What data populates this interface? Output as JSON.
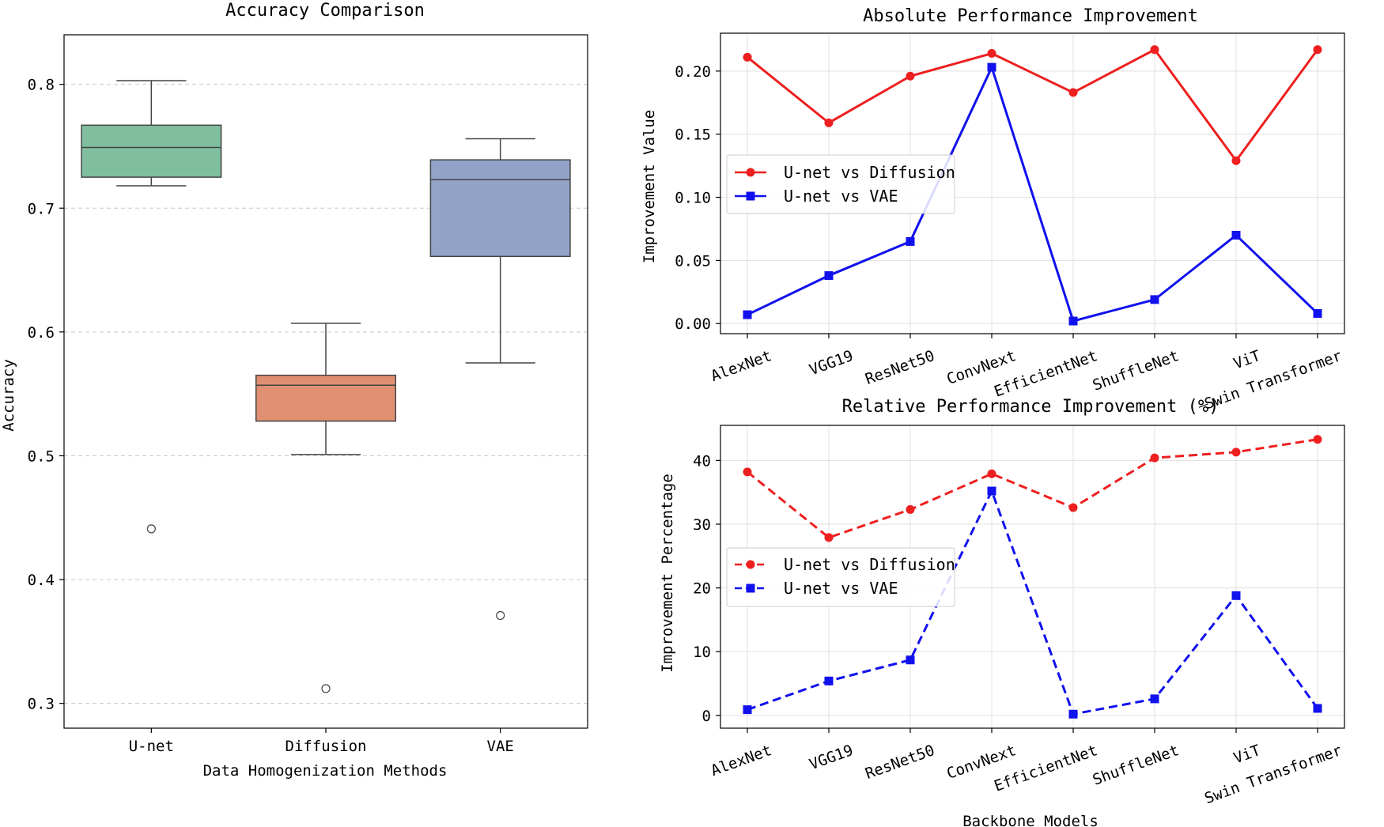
{
  "chart_data": [
    {
      "type": "box",
      "title": "Accuracy Comparison",
      "xlabel": "Data Homogenization Methods",
      "ylabel": "Accuracy",
      "ylim": [
        0.28,
        0.84
      ],
      "yticks": [
        0.3,
        0.4,
        0.5,
        0.6,
        0.7,
        0.8
      ],
      "ytick_labels": [
        "0.3",
        "0.4",
        "0.5",
        "0.6",
        "0.7",
        "0.8"
      ],
      "grid": "y-dashed",
      "boxes": [
        {
          "label": "U-net",
          "whisker_low": 0.718,
          "q1": 0.725,
          "median": 0.749,
          "q3": 0.767,
          "whisker_high": 0.803,
          "outliers": [
            0.441
          ],
          "color": "#7fbf9f"
        },
        {
          "label": "Diffusion",
          "whisker_low": 0.501,
          "q1": 0.528,
          "median": 0.557,
          "q3": 0.565,
          "whisker_high": 0.607,
          "outliers": [
            0.312
          ],
          "color": "#e09070"
        },
        {
          "label": "VAE",
          "whisker_low": 0.575,
          "q1": 0.661,
          "median": 0.723,
          "q3": 0.739,
          "whisker_high": 0.756,
          "outliers": [
            0.371
          ],
          "color": "#93a3c7"
        }
      ]
    },
    {
      "type": "line",
      "title": "Absolute Performance Improvement",
      "xlabel": "",
      "ylabel": "Improvement Value",
      "categories": [
        "AlexNet",
        "VGG19",
        "ResNet50",
        "ConvNext",
        "EfficientNet",
        "ShuffleNet",
        "ViT",
        "Swin Transformer"
      ],
      "ylim": [
        -0.008,
        0.23
      ],
      "yticks": [
        0.0,
        0.05,
        0.1,
        0.15,
        0.2
      ],
      "ytick_labels": [
        "0.00",
        "0.05",
        "0.10",
        "0.15",
        "0.20"
      ],
      "grid": true,
      "legend_position": "center-left",
      "series": [
        {
          "name": "U-net vs Diffusion",
          "color": "#ee1f1f",
          "marker": "circle",
          "dash": "solid",
          "values": [
            0.211,
            0.159,
            0.196,
            0.214,
            0.183,
            0.217,
            0.129,
            0.217
          ]
        },
        {
          "name": "U-net vs VAE",
          "color": "#1111ee",
          "marker": "square",
          "dash": "solid",
          "values": [
            0.007,
            0.038,
            0.065,
            0.203,
            0.002,
            0.019,
            0.07,
            0.008
          ]
        }
      ]
    },
    {
      "type": "line",
      "title": "Relative Performance Improvement (%)",
      "xlabel": "Backbone Models",
      "ylabel": "Improvement Percentage",
      "categories": [
        "AlexNet",
        "VGG19",
        "ResNet50",
        "ConvNext",
        "EfficientNet",
        "ShuffleNet",
        "ViT",
        "Swin Transformer"
      ],
      "ylim": [
        -2,
        45.5
      ],
      "yticks": [
        0,
        10,
        20,
        30,
        40
      ],
      "ytick_labels": [
        "0",
        "10",
        "20",
        "30",
        "40"
      ],
      "grid": true,
      "legend_position": "center-left",
      "series": [
        {
          "name": "U-net vs Diffusion",
          "color": "#ee1f1f",
          "marker": "circle",
          "dash": "dashed",
          "values": [
            38.2,
            27.9,
            32.3,
            37.9,
            32.6,
            40.4,
            41.3,
            43.3
          ]
        },
        {
          "name": "U-net vs VAE",
          "color": "#1111ee",
          "marker": "square",
          "dash": "dashed",
          "values": [
            0.9,
            5.4,
            8.7,
            35.2,
            0.2,
            2.6,
            18.8,
            1.1
          ]
        }
      ]
    }
  ]
}
